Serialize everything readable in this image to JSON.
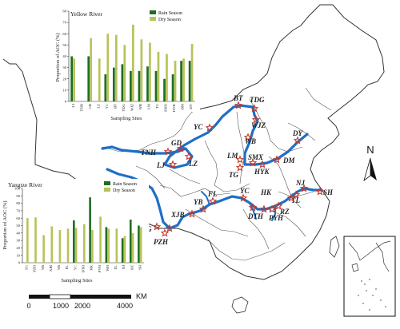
{
  "map": {
    "north_label": "N",
    "scale": {
      "labels": [
        "0",
        "1000",
        "2000",
        "4000"
      ],
      "unit": "KM"
    },
    "colors": {
      "river": "#1f6fc6",
      "boundary": "#333333",
      "marker": "#c0392b"
    },
    "yellow_sites": [
      "BT",
      "TDG",
      "WJZ",
      "WB",
      "YC",
      "GD",
      "TNH",
      "LJ",
      "LZ",
      "LM",
      "SMX",
      "TG",
      "HYK",
      "DM",
      "DY"
    ],
    "yangtze_sites": [
      "SH",
      "NJ",
      "TL",
      "WH",
      "RZ",
      "PYH",
      "DTH",
      "YC",
      "HK",
      "FL",
      "YB",
      "XJB",
      "SG",
      "PZH",
      "YL"
    ],
    "yangtze_labels": [
      "SH",
      "NJ",
      "TL",
      "RZ",
      "PYH",
      "DTH",
      "YC",
      "HK",
      "FL",
      "YB",
      "XJB",
      "SG",
      "PZH"
    ]
  },
  "yellow_chart": {
    "chart_data": {
      "type": "bar",
      "title": "Yellow River",
      "ylabel": "Proportion of AOC (%)",
      "xlabel": "Sampling Sites",
      "ylim": [
        0,
        80
      ],
      "yticks": [
        "0",
        "10",
        "20",
        "30",
        "40",
        "50",
        "60",
        "70",
        "80"
      ],
      "legend_position": "top-right",
      "categories": [
        "LJ",
        "TNH",
        "GD",
        "LZ",
        "YC",
        "BT",
        "TDG",
        "WJZ",
        "WB",
        "LM",
        "TG",
        "SMX",
        "HYK",
        "DM",
        "DY"
      ],
      "series": [
        {
          "name": "Rain Season",
          "color": "#1e6e22",
          "values": [
            40,
            0,
            40,
            0,
            24,
            30,
            33,
            27,
            27,
            31,
            27,
            20,
            24,
            36,
            36
          ]
        },
        {
          "name": "Dry Season",
          "color": "#b9c25a",
          "values": [
            38,
            0,
            56,
            38,
            60,
            59,
            50,
            68,
            55,
            52,
            44,
            42,
            36,
            38,
            51
          ]
        }
      ]
    }
  },
  "yangtze_chart": {
    "chart_data": {
      "type": "bar",
      "title": "Yangtze River",
      "ylabel": "Proportion of AOC (%)",
      "xlabel": "Sampling Sites",
      "ylim": [
        0,
        100
      ],
      "yticks": [
        "0",
        "10",
        "20",
        "30",
        "40",
        "50",
        "60",
        "70",
        "80",
        "90",
        "100"
      ],
      "legend_position": "top-right",
      "categories": [
        "SG",
        "PZH",
        "YB",
        "XJB",
        "YB",
        "FL",
        "YC",
        "DTH",
        "HK",
        "PYH",
        "WH",
        "TL",
        "NJ",
        "RZ",
        "SH"
      ],
      "series": [
        {
          "name": "Rain Season",
          "color": "#1e6e22",
          "values": [
            0,
            0,
            0,
            0,
            0,
            0,
            57,
            0,
            88,
            0,
            48,
            0,
            33,
            58,
            50
          ]
        },
        {
          "name": "Dry Season",
          "color": "#b9c25a",
          "values": [
            60,
            61,
            37,
            49,
            44,
            46,
            47,
            52,
            44,
            62,
            46,
            46,
            36,
            40,
            48
          ]
        }
      ]
    }
  }
}
